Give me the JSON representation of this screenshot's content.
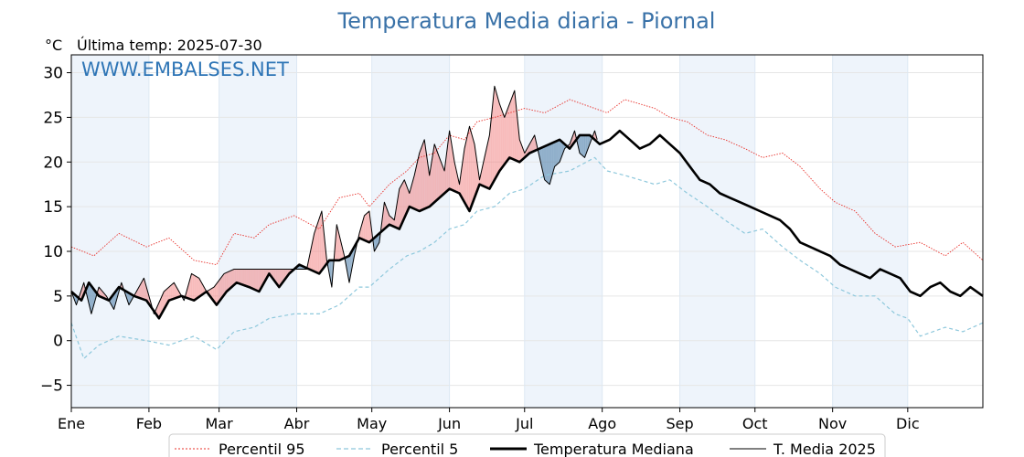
{
  "title": "Temperatura Media diaria - Piornal",
  "unit_label": "°C",
  "last_temp_label": "Última temp: 2025-07-30",
  "watermark": "WWW.EMBALSES.NET",
  "colors": {
    "title": "#3a72a8",
    "p95": "#e8302a",
    "p5": "#8ec8dc",
    "median": "#000000",
    "current": "#000000",
    "above_fill": "#f08080",
    "below_fill": "#4a7ba6",
    "month_band": "#eef4fb"
  },
  "chart_data": {
    "type": "line",
    "title": "Temperatura Media diaria - Piornal",
    "ylabel": "°C",
    "ylim": [
      -7.5,
      32
    ],
    "xlim": [
      1,
      365
    ],
    "yticks": [
      30,
      25,
      20,
      15,
      10,
      5,
      0,
      -5
    ],
    "ytick_labels": [
      "30",
      "25",
      "20",
      "15",
      "10",
      "5",
      "0",
      "−5"
    ],
    "month_labels": [
      "Ene",
      "Feb",
      "Mar",
      "Abr",
      "May",
      "Jun",
      "Jul",
      "Ago",
      "Sep",
      "Oct",
      "Nov",
      "Dic"
    ],
    "month_starts": [
      1,
      32,
      60,
      91,
      121,
      152,
      182,
      213,
      244,
      274,
      305,
      335
    ],
    "grid": true,
    "legend_position": "bottom",
    "series": [
      {
        "name": "Percentil 95",
        "style": "dotted",
        "x": [
          1,
          10,
          20,
          31,
          40,
          50,
          59,
          66,
          74,
          80,
          90,
          100,
          108,
          116,
          120,
          128,
          135,
          140,
          146,
          152,
          158,
          163,
          170,
          176,
          182,
          190,
          200,
          210,
          215,
          222,
          228,
          234,
          240,
          247,
          255,
          262,
          270,
          277,
          285,
          292,
          300,
          306,
          314,
          322,
          330,
          340,
          350,
          357,
          365
        ],
        "values": [
          10.5,
          9.5,
          12.0,
          10.5,
          11.5,
          9.0,
          8.5,
          12.0,
          11.5,
          13.0,
          14.0,
          12.5,
          16.0,
          16.5,
          15.0,
          17.5,
          19.0,
          20.5,
          21.0,
          23.0,
          22.5,
          24.5,
          25.0,
          25.5,
          26.0,
          25.5,
          27.0,
          26.0,
          25.5,
          27.0,
          26.5,
          26.0,
          25.0,
          24.5,
          23.0,
          22.5,
          21.5,
          20.5,
          21.0,
          19.5,
          17.0,
          15.5,
          14.5,
          12.0,
          10.5,
          11.0,
          9.5,
          11.0,
          9.0
        ]
      },
      {
        "name": "Percentil 5",
        "style": "dashed",
        "x": [
          1,
          6,
          12,
          20,
          31,
          40,
          50,
          59,
          66,
          74,
          80,
          90,
          100,
          108,
          116,
          120,
          128,
          135,
          140,
          146,
          152,
          158,
          163,
          170,
          176,
          182,
          190,
          200,
          210,
          215,
          222,
          228,
          234,
          240,
          247,
          255,
          262,
          270,
          277,
          285,
          292,
          300,
          306,
          314,
          322,
          330,
          335,
          340,
          350,
          357,
          365
        ],
        "values": [
          2.0,
          -2.0,
          -0.5,
          0.5,
          0.0,
          -0.5,
          0.5,
          -1.0,
          1.0,
          1.5,
          2.5,
          3.0,
          3.0,
          4.0,
          6.0,
          6.0,
          8.0,
          9.5,
          10.0,
          11.0,
          12.5,
          13.0,
          14.5,
          15.0,
          16.5,
          17.0,
          18.5,
          19.0,
          20.5,
          19.0,
          18.5,
          18.0,
          17.5,
          18.0,
          16.5,
          15.0,
          13.5,
          12.0,
          12.5,
          10.5,
          9.0,
          7.5,
          6.0,
          5.0,
          5.0,
          3.0,
          2.5,
          0.5,
          1.5,
          1.0,
          2.0
        ]
      },
      {
        "name": "Temperatura Mediana",
        "style": "solid-thick",
        "x": [
          1,
          5,
          8,
          12,
          16,
          20,
          26,
          31,
          36,
          40,
          45,
          50,
          55,
          59,
          63,
          67,
          72,
          76,
          80,
          84,
          88,
          92,
          96,
          100,
          104,
          108,
          112,
          116,
          120,
          124,
          128,
          132,
          136,
          140,
          144,
          148,
          152,
          156,
          160,
          164,
          168,
          172,
          176,
          180,
          184,
          188,
          192,
          196,
          200,
          204,
          208,
          212,
          216,
          220,
          224,
          228,
          232,
          236,
          240,
          244,
          248,
          252,
          256,
          260,
          264,
          268,
          272,
          276,
          280,
          284,
          288,
          292,
          296,
          300,
          304,
          308,
          312,
          316,
          320,
          324,
          328,
          332,
          336,
          340,
          344,
          348,
          352,
          356,
          360,
          365
        ],
        "values": [
          5.5,
          4.5,
          6.5,
          5.0,
          4.5,
          6.0,
          5.0,
          4.5,
          2.5,
          4.5,
          5.0,
          4.5,
          5.5,
          4.0,
          5.5,
          6.5,
          6.0,
          5.5,
          7.5,
          6.0,
          7.5,
          8.5,
          8.0,
          7.5,
          9.0,
          9.0,
          9.5,
          11.5,
          11.0,
          12.0,
          13.0,
          12.5,
          15.0,
          14.5,
          15.0,
          16.0,
          17.0,
          16.5,
          14.5,
          17.5,
          17.0,
          19.0,
          20.5,
          20.0,
          21.0,
          21.5,
          22.0,
          22.5,
          21.5,
          23.0,
          23.0,
          22.0,
          22.5,
          23.5,
          22.5,
          21.5,
          22.0,
          23.0,
          22.0,
          21.0,
          19.5,
          18.0,
          17.5,
          16.5,
          16.0,
          15.5,
          15.0,
          14.5,
          14.0,
          13.5,
          12.5,
          11.0,
          10.5,
          10.0,
          9.5,
          8.5,
          8.0,
          7.5,
          7.0,
          8.0,
          7.5,
          7.0,
          5.5,
          5.0,
          6.0,
          6.5,
          5.5,
          5.0,
          6.0,
          5.0
        ]
      },
      {
        "name": "T. Media 2025",
        "style": "solid-thin",
        "x": [
          1,
          3,
          6,
          9,
          12,
          15,
          18,
          21,
          24,
          27,
          30,
          34,
          38,
          42,
          46,
          49,
          52,
          55,
          58,
          62,
          66,
          70,
          74,
          80,
          88,
          95,
          98,
          101,
          103,
          105,
          107,
          110,
          112,
          114,
          116,
          118,
          120,
          122,
          124,
          126,
          128,
          130,
          132,
          134,
          136,
          138,
          140,
          142,
          144,
          146,
          148,
          150,
          152,
          154,
          156,
          158,
          160,
          162,
          164,
          166,
          168,
          170,
          172,
          174,
          176,
          178,
          180,
          182,
          184,
          186,
          188,
          190,
          192,
          194,
          196,
          198,
          200,
          202,
          204,
          206,
          208,
          210,
          211
        ],
        "values": [
          5.5,
          4.0,
          6.5,
          3.0,
          6.0,
          5.0,
          3.5,
          6.5,
          4.0,
          5.5,
          7.0,
          3.0,
          5.5,
          6.5,
          4.5,
          7.5,
          7.0,
          5.5,
          6.0,
          7.5,
          8.0,
          8.0,
          8.0,
          8.0,
          8.0,
          8.0,
          12.0,
          14.5,
          9.0,
          6.0,
          13.0,
          9.5,
          6.5,
          9.5,
          12.0,
          14.0,
          14.5,
          10.0,
          11.0,
          15.5,
          14.0,
          13.5,
          17.0,
          18.0,
          16.5,
          18.5,
          21.0,
          22.5,
          18.5,
          22.0,
          20.5,
          19.0,
          23.5,
          20.0,
          17.5,
          21.5,
          24.0,
          22.0,
          18.0,
          20.5,
          23.0,
          28.5,
          26.5,
          25.0,
          26.5,
          28.0,
          22.5,
          21.0,
          22.0,
          23.0,
          20.5,
          18.0,
          17.5,
          19.5,
          20.0,
          21.5,
          22.0,
          23.5,
          21.0,
          20.5,
          22.0,
          23.5,
          22.5
        ]
      }
    ]
  }
}
